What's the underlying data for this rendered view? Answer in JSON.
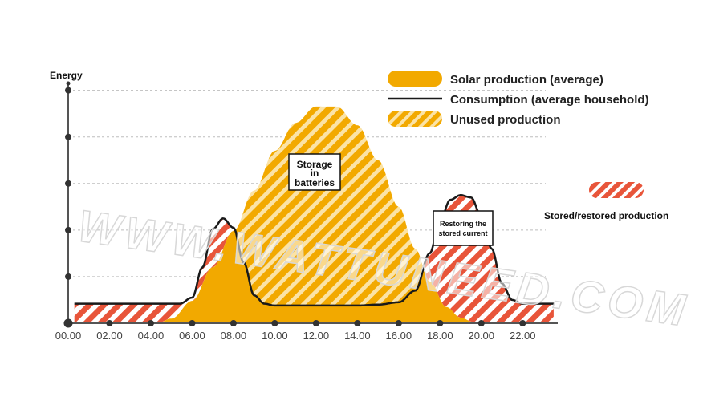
{
  "chart_data": {
    "type": "area",
    "ylabel": "Energy",
    "x_ticks": [
      "00.00",
      "02.00",
      "04.00",
      "06.00",
      "08.00",
      "10.00",
      "12.00",
      "14.00",
      "16.00",
      "18.00",
      "20.00",
      "22.00"
    ],
    "y_tick_count": 5,
    "xlim": [
      0,
      23.7
    ],
    "ylim": [
      0,
      5.2
    ],
    "grid": true,
    "series": [
      {
        "name": "Solar production (average)",
        "color": "#f2a900",
        "x": [
          4.3,
          5.0,
          6.0,
          7.0,
          8.0,
          9.0,
          10.0,
          11.0,
          12.0,
          13.0,
          14.0,
          15.0,
          16.0,
          16.8,
          17.5,
          18.3,
          19.0,
          19.6,
          20.0
        ],
        "y": [
          0,
          0.1,
          0.48,
          1.2,
          1.98,
          2.85,
          3.7,
          4.3,
          4.65,
          4.65,
          4.25,
          3.5,
          2.5,
          1.6,
          0.9,
          0.35,
          0.12,
          0.03,
          0
        ]
      },
      {
        "name": "Consumption (average household)",
        "color": "#1a1a1a",
        "x": [
          0.3,
          5.4,
          6.0,
          6.5,
          7.0,
          7.5,
          8.0,
          8.5,
          9.0,
          9.5,
          10.0,
          11.0,
          14.0,
          15.0,
          16.0,
          16.8,
          17.5,
          18.0,
          18.5,
          19.0,
          19.5,
          20.0,
          20.5,
          21.0,
          21.5,
          22.0,
          23.5
        ],
        "y": [
          0.42,
          0.42,
          0.55,
          1.2,
          2.02,
          2.25,
          2.05,
          1.3,
          0.6,
          0.42,
          0.38,
          0.38,
          0.38,
          0.4,
          0.45,
          0.7,
          1.5,
          2.2,
          2.65,
          2.75,
          2.7,
          2.3,
          1.6,
          0.85,
          0.5,
          0.42,
          0.42
        ]
      }
    ],
    "legend": [
      {
        "label": "Solar production (average)",
        "style": "solid",
        "color": "#f2a900"
      },
      {
        "label": "Consumption (average household)",
        "style": "line",
        "color": "#1a1a1a"
      },
      {
        "label": "Unused production",
        "style": "hatched",
        "color": "#f2a900"
      }
    ],
    "side_legend": {
      "label": "Stored/restored production",
      "style": "hatched",
      "color": "#e8553a"
    },
    "annotations": [
      {
        "text": "Storage in batteries",
        "lines": [
          "Storage",
          "in",
          "batteries"
        ]
      },
      {
        "text": "Restoring the stored current",
        "lines": [
          "Restoring the",
          "stored current"
        ]
      }
    ],
    "colors": {
      "solar": "#f2a900",
      "stored": "#e8553a",
      "consumption": "#1a1a1a",
      "axis": "#555555"
    },
    "watermark": "WWW.WATTUNEED.COM"
  }
}
